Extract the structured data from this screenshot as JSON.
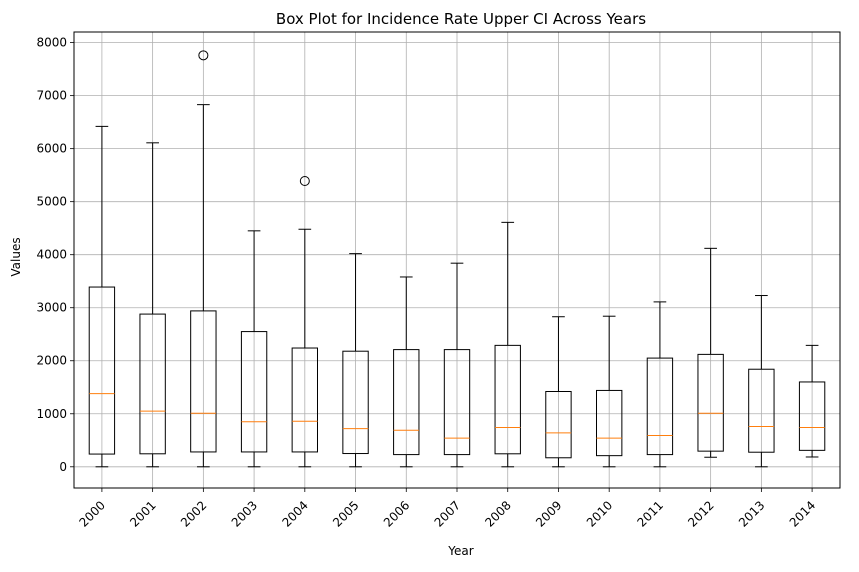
{
  "chart_data": {
    "type": "box",
    "title": "Box Plot for Incidence Rate Upper CI Across Years",
    "xlabel": "Year",
    "ylabel": "Values",
    "ylim": [
      -400,
      8200
    ],
    "yticks": [
      0,
      1000,
      2000,
      3000,
      4000,
      5000,
      6000,
      7000,
      8000
    ],
    "grid": true,
    "categories": [
      "2000",
      "2001",
      "2002",
      "2003",
      "2004",
      "2005",
      "2006",
      "2007",
      "2008",
      "2009",
      "2010",
      "2011",
      "2012",
      "2013",
      "2014"
    ],
    "boxes": [
      {
        "year": "2000",
        "whislo": 0,
        "q1": 240,
        "median": 1380,
        "q3": 3390,
        "whishi": 6420,
        "fliers": []
      },
      {
        "year": "2001",
        "whislo": 0,
        "q1": 245,
        "median": 1050,
        "q3": 2880,
        "whishi": 6110,
        "fliers": []
      },
      {
        "year": "2002",
        "whislo": 0,
        "q1": 280,
        "median": 1010,
        "q3": 2940,
        "whishi": 6830,
        "fliers": [
          7760
        ]
      },
      {
        "year": "2003",
        "whislo": 0,
        "q1": 280,
        "median": 850,
        "q3": 2550,
        "whishi": 4450,
        "fliers": []
      },
      {
        "year": "2004",
        "whislo": 0,
        "q1": 280,
        "median": 860,
        "q3": 2240,
        "whishi": 4480,
        "fliers": [
          5390
        ]
      },
      {
        "year": "2005",
        "whislo": 0,
        "q1": 250,
        "median": 720,
        "q3": 2180,
        "whishi": 4020,
        "fliers": []
      },
      {
        "year": "2006",
        "whislo": 0,
        "q1": 230,
        "median": 690,
        "q3": 2210,
        "whishi": 3580,
        "fliers": []
      },
      {
        "year": "2007",
        "whislo": 0,
        "q1": 230,
        "median": 540,
        "q3": 2210,
        "whishi": 3840,
        "fliers": []
      },
      {
        "year": "2008",
        "whislo": 0,
        "q1": 245,
        "median": 740,
        "q3": 2290,
        "whishi": 4610,
        "fliers": []
      },
      {
        "year": "2009",
        "whislo": 0,
        "q1": 170,
        "median": 640,
        "q3": 1420,
        "whishi": 2830,
        "fliers": []
      },
      {
        "year": "2010",
        "whislo": 0,
        "q1": 210,
        "median": 540,
        "q3": 1440,
        "whishi": 2840,
        "fliers": []
      },
      {
        "year": "2011",
        "whislo": 0,
        "q1": 230,
        "median": 590,
        "q3": 2050,
        "whishi": 3110,
        "fliers": []
      },
      {
        "year": "2012",
        "whislo": 180,
        "q1": 295,
        "median": 1010,
        "q3": 2120,
        "whishi": 4120,
        "fliers": []
      },
      {
        "year": "2013",
        "whislo": 0,
        "q1": 275,
        "median": 760,
        "q3": 1840,
        "whishi": 3230,
        "fliers": []
      },
      {
        "year": "2014",
        "whislo": 185,
        "q1": 310,
        "median": 740,
        "q3": 1600,
        "whishi": 2290,
        "fliers": []
      }
    ],
    "colors": {
      "box": "#000000",
      "median": "#ff7f0e",
      "grid": "#b0b0b0"
    }
  }
}
